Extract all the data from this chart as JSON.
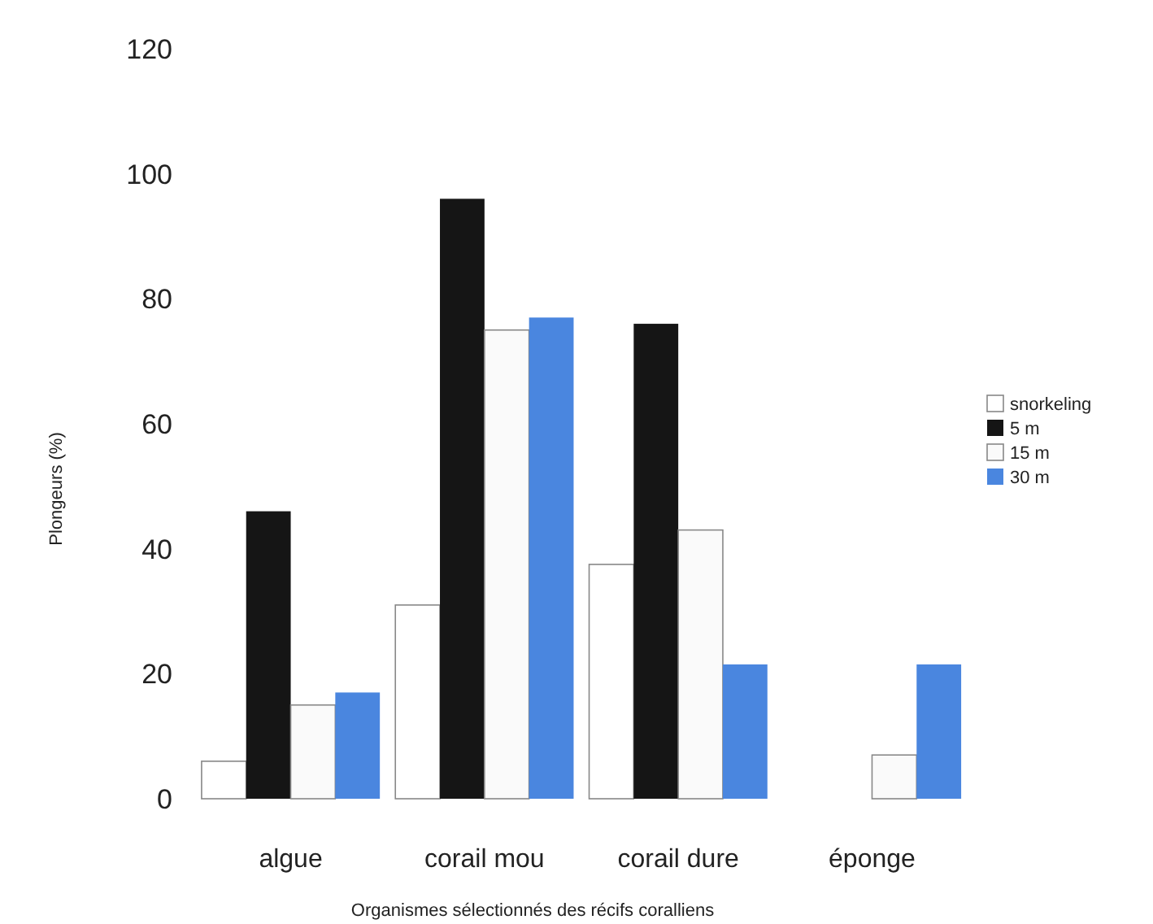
{
  "chart_data": {
    "type": "bar",
    "xlabel": "Organismes sélectionnés des récifs coralliens",
    "ylabel": "Plongeurs (%)",
    "categories": [
      "algue",
      "corail mou",
      "corail dure",
      "éponge"
    ],
    "series": [
      {
        "name": "snorkeling",
        "color": "#ffffff",
        "values": [
          6,
          31,
          37.5,
          0
        ]
      },
      {
        "name": "5 m",
        "color": "#151515",
        "values": [
          46,
          96,
          76,
          0
        ]
      },
      {
        "name": "15 m",
        "color": "#fafafa",
        "values": [
          15,
          75,
          43,
          7
        ]
      },
      {
        "name": "30 m",
        "color": "#4a86df",
        "values": [
          17,
          77,
          21.5,
          21.5
        ]
      }
    ],
    "ylim": [
      0,
      120
    ],
    "yticks": [
      0,
      20,
      40,
      60,
      80,
      100,
      120
    ],
    "grid": false,
    "legend": "right"
  }
}
